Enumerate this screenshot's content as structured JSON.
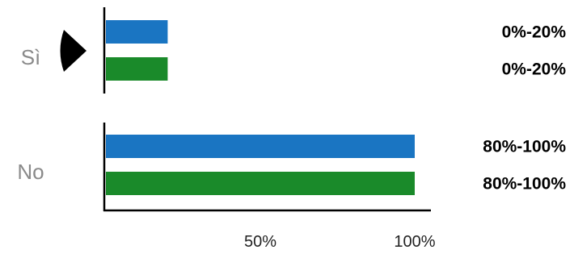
{
  "chart_data": {
    "type": "bar",
    "orientation": "horizontal",
    "categories": [
      "Sì",
      "No"
    ],
    "series": [
      {
        "color": "#1a75c2",
        "values": [
          20,
          100
        ],
        "labels": [
          "0%-20%",
          "80%-100%"
        ]
      },
      {
        "color": "#1a8a2a",
        "values": [
          20,
          100
        ],
        "labels": [
          "0%-20%",
          "80%-100%"
        ]
      }
    ],
    "xlim": [
      0,
      100
    ],
    "xticks": [
      {
        "value": 50,
        "label": "50%"
      },
      {
        "value": 100,
        "label": "100%"
      }
    ],
    "grid": false,
    "selected_category": "Sì",
    "pointer_icon": "pointer-triangle-icon",
    "title": "",
    "xlabel": "",
    "ylabel": ""
  }
}
